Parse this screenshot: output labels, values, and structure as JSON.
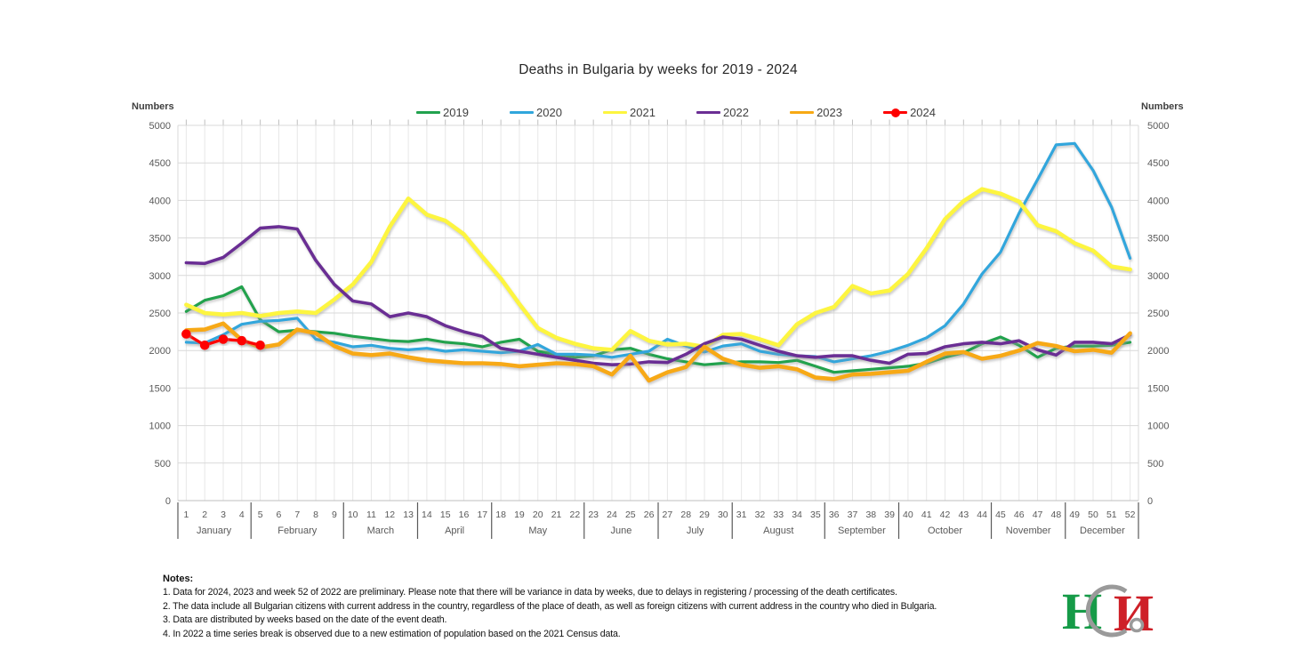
{
  "title": "Deaths in Bulgaria by weeks for 2019 - 2024",
  "axis": {
    "left_label": "Numbers",
    "right_label": "Numbers",
    "y_ticks": [
      0,
      500,
      1000,
      1500,
      2000,
      2500,
      3000,
      3500,
      4000,
      4500,
      5000
    ]
  },
  "chart_data": {
    "type": "line",
    "title": "Deaths in Bulgaria by weeks for 2019 - 2024",
    "ylabel": "Numbers",
    "ylim": [
      0,
      5000
    ],
    "y_step": 500,
    "weeks": 52,
    "grid": true,
    "legend_position": "top",
    "months": [
      {
        "name": "January",
        "weeks": [
          1,
          4
        ]
      },
      {
        "name": "February",
        "weeks": [
          5,
          9
        ]
      },
      {
        "name": "March",
        "weeks": [
          10,
          13
        ]
      },
      {
        "name": "April",
        "weeks": [
          14,
          17
        ]
      },
      {
        "name": "May",
        "weeks": [
          18,
          22
        ]
      },
      {
        "name": "June",
        "weeks": [
          23,
          26
        ]
      },
      {
        "name": "July",
        "weeks": [
          27,
          30
        ]
      },
      {
        "name": "August",
        "weeks": [
          31,
          35
        ]
      },
      {
        "name": "September",
        "weeks": [
          36,
          39
        ]
      },
      {
        "name": "October",
        "weeks": [
          40,
          44
        ]
      },
      {
        "name": "November",
        "weeks": [
          45,
          48
        ]
      },
      {
        "name": "December",
        "weeks": [
          49,
          52
        ]
      }
    ],
    "series": [
      {
        "name": "2019",
        "color": "#22A24E",
        "width": 3.2,
        "marker": false,
        "values": [
          2520,
          2670,
          2730,
          2850,
          2410,
          2250,
          2270,
          2250,
          2230,
          2190,
          2160,
          2130,
          2120,
          2150,
          2110,
          2090,
          2050,
          2110,
          2150,
          1990,
          1950,
          1910,
          1930,
          2010,
          2030,
          1950,
          1890,
          1850,
          1810,
          1830,
          1850,
          1850,
          1840,
          1870,
          1790,
          1710,
          1730,
          1750,
          1770,
          1790,
          1830,
          1910,
          1970,
          2090,
          2180,
          2070,
          1910,
          2030,
          2060,
          2060,
          2070,
          2110
        ]
      },
      {
        "name": "2020",
        "color": "#30A6DC",
        "width": 3.2,
        "marker": false,
        "values": [
          2110,
          2100,
          2210,
          2350,
          2390,
          2400,
          2430,
          2150,
          2110,
          2050,
          2070,
          2030,
          2010,
          2030,
          1990,
          2010,
          1990,
          1970,
          1990,
          2080,
          1950,
          1950,
          1940,
          1910,
          1950,
          1990,
          2150,
          2060,
          1980,
          2060,
          2090,
          1990,
          1950,
          1930,
          1920,
          1850,
          1890,
          1930,
          1990,
          2070,
          2170,
          2330,
          2620,
          3020,
          3310,
          3830,
          4280,
          4740,
          4760,
          4400,
          3910,
          3230
        ]
      },
      {
        "name": "2021",
        "color": "#FDF53F",
        "width": 4.6,
        "marker": false,
        "values": [
          2610,
          2500,
          2480,
          2500,
          2460,
          2500,
          2520,
          2500,
          2680,
          2880,
          3180,
          3650,
          4025,
          3810,
          3730,
          3550,
          3250,
          2960,
          2620,
          2300,
          2170,
          2090,
          2030,
          2010,
          2260,
          2130,
          2080,
          2090,
          2050,
          2210,
          2220,
          2150,
          2070,
          2350,
          2500,
          2580,
          2860,
          2760,
          2800,
          3020,
          3360,
          3750,
          3990,
          4150,
          4090,
          3985,
          3670,
          3590,
          3430,
          3330,
          3120,
          3080
        ]
      },
      {
        "name": "2022",
        "color": "#6B2E94",
        "width": 3.6,
        "marker": false,
        "values": [
          3170,
          3160,
          3240,
          3430,
          3630,
          3650,
          3620,
          3200,
          2880,
          2660,
          2620,
          2450,
          2500,
          2450,
          2330,
          2250,
          2190,
          2030,
          1990,
          1950,
          1910,
          1870,
          1830,
          1810,
          1820,
          1850,
          1840,
          1950,
          2090,
          2180,
          2150,
          2070,
          1990,
          1930,
          1910,
          1930,
          1930,
          1870,
          1830,
          1950,
          1960,
          2050,
          2090,
          2110,
          2090,
          2130,
          2010,
          1940,
          2110,
          2110,
          2090,
          2210
        ]
      },
      {
        "name": "2023",
        "color": "#F7A914",
        "width": 4.6,
        "marker": false,
        "values": [
          2270,
          2280,
          2360,
          2140,
          2040,
          2080,
          2280,
          2230,
          2060,
          1960,
          1940,
          1960,
          1910,
          1870,
          1850,
          1830,
          1830,
          1820,
          1790,
          1810,
          1830,
          1820,
          1790,
          1680,
          1930,
          1600,
          1710,
          1780,
          2050,
          1890,
          1810,
          1770,
          1790,
          1750,
          1640,
          1620,
          1680,
          1690,
          1710,
          1730,
          1850,
          1960,
          1980,
          1890,
          1930,
          2000,
          2100,
          2060,
          1990,
          2010,
          1970,
          2230
        ]
      },
      {
        "name": "2024",
        "color": "#FE0000",
        "width": 3.4,
        "marker": true,
        "values": [
          2220,
          2070,
          2150,
          2130,
          2070
        ]
      }
    ]
  },
  "notes": {
    "title": "Notes:",
    "items": [
      "1. Data for 2024, 2023 and week 52 of 2022 are preliminary. Please note that there will be variance in data by weeks, due to delays in registering / processing of the death certificates.",
      "2. The data include all Bulgarian citizens with current address in the country, regardless of the place of death, as well as foreign citizens with current address in the country who died in Bulgaria.",
      "3. Data are distributed by weeks based on the date of the event death.",
      "4. In 2022 a time series break is observed due to a new estimation of population based on the 2021 Census data."
    ]
  },
  "logo": {
    "text": "НСИ"
  },
  "colors": {
    "grid_h": "#D9D9D9",
    "grid_v": "#E7E7E7",
    "axis_line": "#BFBFBF",
    "separator": "#595959",
    "tick_text": "#595959"
  }
}
